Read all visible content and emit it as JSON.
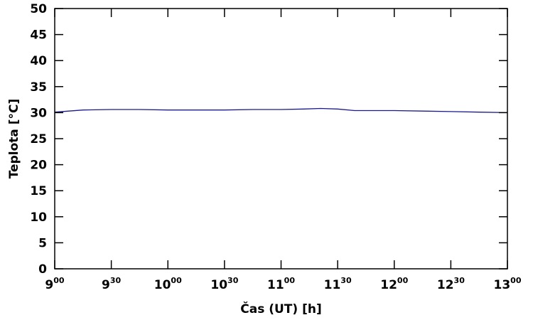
{
  "chart_data": {
    "type": "line",
    "title": "",
    "xlabel": "Čas (UT) [h]",
    "ylabel": "Teplota [°C]",
    "xlim": [
      9.0,
      13.0
    ],
    "ylim": [
      0,
      50
    ],
    "grid": false,
    "x_ticks": [
      {
        "value": 9.0,
        "base": "9",
        "sup": "00"
      },
      {
        "value": 9.5,
        "base": "9",
        "sup": "30"
      },
      {
        "value": 10.0,
        "base": "10",
        "sup": "00"
      },
      {
        "value": 10.5,
        "base": "10",
        "sup": "30"
      },
      {
        "value": 11.0,
        "base": "11",
        "sup": "00"
      },
      {
        "value": 11.5,
        "base": "11",
        "sup": "30"
      },
      {
        "value": 12.0,
        "base": "12",
        "sup": "00"
      },
      {
        "value": 12.5,
        "base": "12",
        "sup": "30"
      },
      {
        "value": 13.0,
        "base": "13",
        "sup": "00"
      }
    ],
    "y_ticks": [
      0,
      5,
      10,
      15,
      20,
      25,
      30,
      35,
      40,
      45,
      50
    ],
    "series": [
      {
        "color": "#1a1a8c",
        "x": [
          9.0,
          9.25,
          9.5,
          9.75,
          10.0,
          10.25,
          10.5,
          10.75,
          11.0,
          11.2,
          11.35,
          11.5,
          11.65,
          11.8,
          12.0,
          12.25,
          12.5,
          12.75,
          13.0
        ],
        "y": [
          30.1,
          30.5,
          30.6,
          30.6,
          30.5,
          30.5,
          30.5,
          30.6,
          30.6,
          30.7,
          30.8,
          30.7,
          30.4,
          30.4,
          30.4,
          30.3,
          30.2,
          30.1,
          30.0
        ]
      }
    ]
  }
}
